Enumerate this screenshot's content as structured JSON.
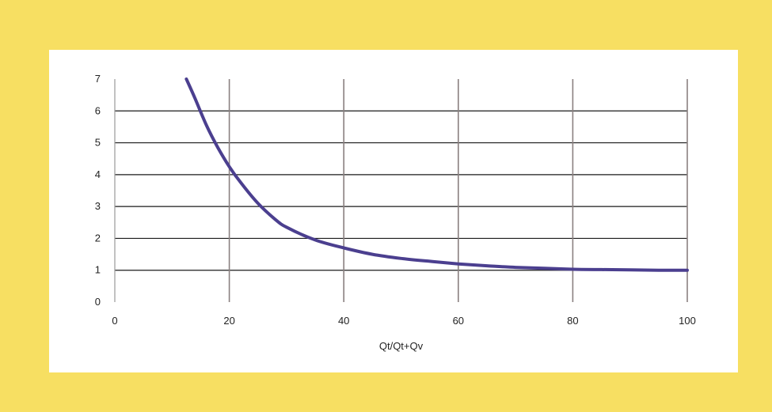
{
  "chart_data": {
    "type": "line",
    "title": "",
    "xlabel": "Qt/Qt+Qv",
    "ylabel": "",
    "xlim": [
      0,
      100
    ],
    "ylim": [
      0,
      7
    ],
    "x_ticks": [
      "0",
      "20",
      "40",
      "60",
      "80",
      "100"
    ],
    "y_ticks": [
      "0",
      "1",
      "2",
      "3",
      "4",
      "5",
      "6",
      "7"
    ],
    "grid": "on",
    "legend": "none",
    "series": [
      {
        "color": "#4b3f8f",
        "x": [
          12.5,
          14,
          16,
          18,
          20,
          22,
          25,
          28,
          30,
          35,
          40,
          45,
          50,
          55,
          60,
          65,
          70,
          75,
          80,
          85,
          90,
          95,
          100
        ],
        "y": [
          7.0,
          6.4,
          5.55,
          4.85,
          4.25,
          3.75,
          3.1,
          2.6,
          2.35,
          1.95,
          1.7,
          1.5,
          1.37,
          1.28,
          1.2,
          1.14,
          1.09,
          1.06,
          1.03,
          1.02,
          1.01,
          1.0,
          1.0
        ]
      }
    ]
  },
  "colors": {
    "frame": "#f7df62",
    "panel": "#ffffff",
    "grid": "#1a1a1a",
    "vertical_grid": "#8a8080",
    "line": "#4b3f8f"
  }
}
